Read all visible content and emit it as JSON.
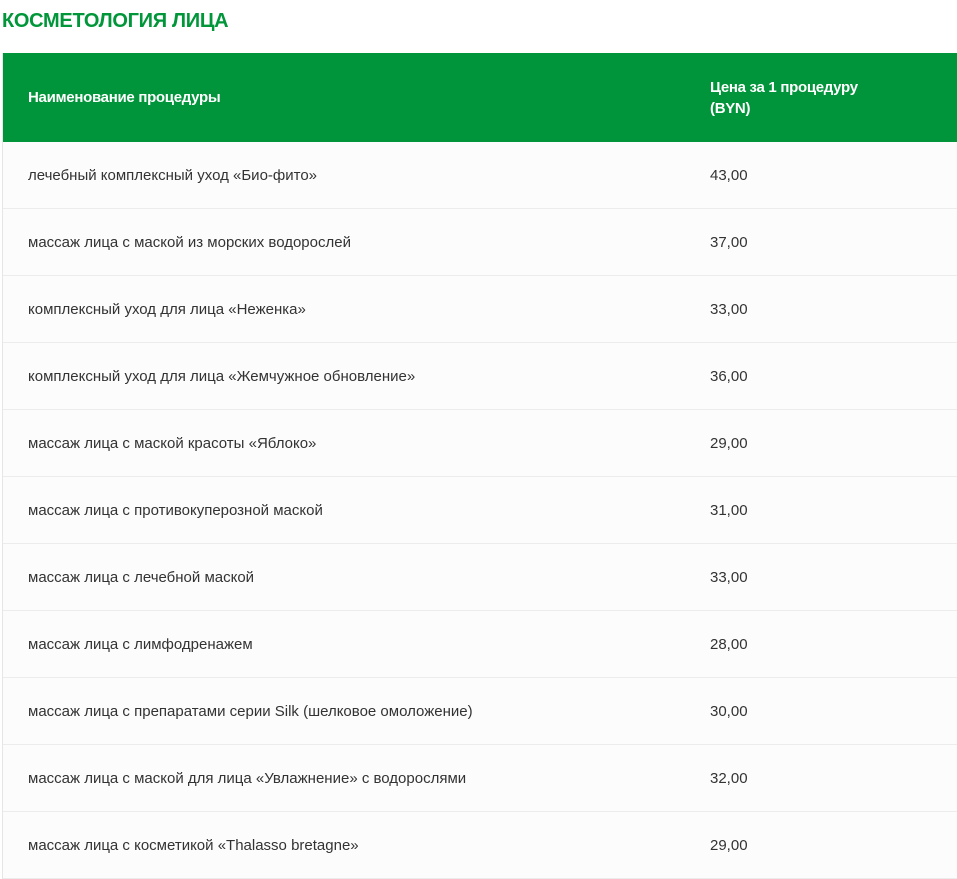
{
  "section_title": "КОСМЕТОЛОГИЯ ЛИЦА",
  "table": {
    "headers": {
      "name": "Наименование процедуры",
      "price_line1": "Цена за 1 процедуру",
      "price_line2": "(BYN)"
    },
    "rows": [
      {
        "name": "лечебный комплексный уход «Био-фито»",
        "price": "43,00"
      },
      {
        "name": "массаж лица с маской из морских водорослей",
        "price": "37,00"
      },
      {
        "name": "комплексный уход для лица «Неженка»",
        "price": "33,00"
      },
      {
        "name": "комплексный уход для лица «Жемчужное обновление»",
        "price": "36,00"
      },
      {
        "name": "массаж лица с маской красоты «Яблоко»",
        "price": "29,00"
      },
      {
        "name": "массаж лица с противокуперозной маской",
        "price": "31,00"
      },
      {
        "name": "массаж лица с лечебной маской",
        "price": "33,00"
      },
      {
        "name": "массаж лица с лимфодренажем",
        "price": "28,00"
      },
      {
        "name": "массаж лица с препаратами серии Silk (шелковое омоложение)",
        "price": "30,00"
      },
      {
        "name": "массаж лица с маской для лица «Увлажнение» с водорослями",
        "price": "32,00"
      },
      {
        "name": "массаж лица с косметикой «Thalasso bretagne»",
        "price": "29,00"
      }
    ]
  },
  "colors": {
    "accent": "#00953a",
    "title": "#009639"
  }
}
